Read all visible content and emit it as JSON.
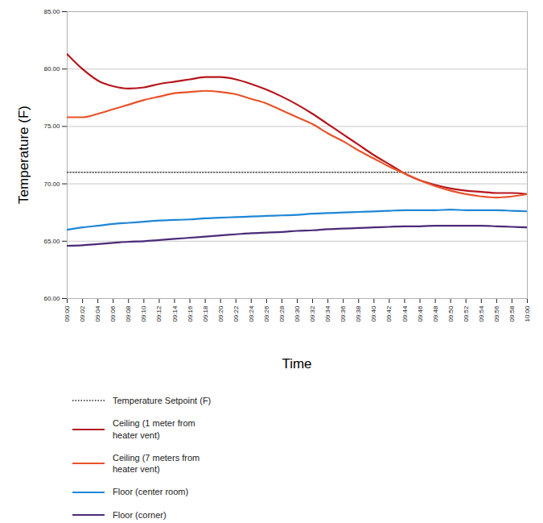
{
  "chart_data": {
    "type": "line",
    "xlabel": "Time",
    "ylabel": "Temperature (F)",
    "x": [
      "09:00",
      "09:02",
      "09:04",
      "09:06",
      "09:08",
      "09:10",
      "09:12",
      "09:14",
      "09:16",
      "09:18",
      "09:20",
      "09:22",
      "09:24",
      "09:26",
      "09:28",
      "09:30",
      "09:32",
      "09:34",
      "09:36",
      "09:38",
      "09:40",
      "09:42",
      "09:44",
      "09:46",
      "09:48",
      "09:50",
      "09:52",
      "09:54",
      "09:56",
      "09:58",
      "10:00"
    ],
    "xlim": [
      "09:00",
      "10:00"
    ],
    "xticks": [
      "09:00",
      "09:02",
      "09:04",
      "09:06",
      "09:08",
      "09:10",
      "09:12",
      "09:14",
      "09:16",
      "09:18",
      "09:20",
      "09:22",
      "09:24",
      "09:26",
      "09:28",
      "09:30",
      "09:32",
      "09:34",
      "09:36",
      "09:38",
      "09:40",
      "09:42",
      "09:44",
      "09:46",
      "09:48",
      "09:50",
      "09:52",
      "09:54",
      "09:56",
      "09:58",
      "10:00"
    ],
    "ylim": [
      60,
      85
    ],
    "yticks": [
      {
        "value": 60,
        "label": "60.00"
      },
      {
        "value": 65,
        "label": "65.00"
      },
      {
        "value": 70,
        "label": "70.00"
      },
      {
        "value": 75,
        "label": "75.00"
      },
      {
        "value": 80,
        "label": "80.00"
      },
      {
        "value": 85,
        "label": "85.00"
      }
    ],
    "grid": true,
    "legend": "bottom",
    "series": [
      {
        "name": "Temperature Setpoint (F)",
        "color": "#222222",
        "line_style": "dotted",
        "values": [
          71,
          71,
          71,
          71,
          71,
          71,
          71,
          71,
          71,
          71,
          71,
          71,
          71,
          71,
          71,
          71,
          71,
          71,
          71,
          71,
          71,
          71,
          71,
          71,
          71,
          71,
          71,
          71,
          71,
          71,
          71
        ]
      },
      {
        "name": "Ceiling (1 meter from heater vent)",
        "color": "#b5161d",
        "line_style": "solid",
        "values": [
          81.3,
          80.0,
          79.0,
          78.5,
          78.3,
          78.4,
          78.7,
          78.9,
          79.1,
          79.3,
          79.3,
          79.1,
          78.7,
          78.2,
          77.6,
          76.9,
          76.1,
          75.2,
          74.3,
          73.4,
          72.5,
          71.7,
          70.9,
          70.3,
          69.9,
          69.6,
          69.4,
          69.3,
          69.2,
          69.2,
          69.1
        ]
      },
      {
        "name": "Ceiling (7 meters from heater vent)",
        "color": "#e8532a",
        "line_style": "solid",
        "values": [
          75.8,
          75.8,
          76.1,
          76.5,
          76.9,
          77.3,
          77.6,
          77.9,
          78.0,
          78.1,
          78.0,
          77.8,
          77.4,
          77.0,
          76.4,
          75.8,
          75.2,
          74.4,
          73.7,
          72.9,
          72.2,
          71.5,
          70.9,
          70.3,
          69.8,
          69.4,
          69.1,
          68.9,
          68.8,
          68.9,
          69.1
        ]
      },
      {
        "name": "Floor (center room)",
        "color": "#1f87d6",
        "line_style": "solid",
        "values": [
          66.0,
          66.2,
          66.35,
          66.5,
          66.6,
          66.7,
          66.8,
          66.85,
          66.9,
          67.0,
          67.05,
          67.1,
          67.15,
          67.2,
          67.25,
          67.3,
          67.4,
          67.45,
          67.5,
          67.55,
          67.6,
          67.65,
          67.7,
          67.7,
          67.7,
          67.75,
          67.7,
          67.7,
          67.7,
          67.65,
          67.6
        ]
      },
      {
        "name": "Floor (corner)",
        "color": "#4b2a78",
        "line_style": "solid",
        "values": [
          64.6,
          64.65,
          64.75,
          64.85,
          64.95,
          65.0,
          65.1,
          65.2,
          65.3,
          65.4,
          65.5,
          65.6,
          65.7,
          65.75,
          65.8,
          65.9,
          65.95,
          66.05,
          66.1,
          66.15,
          66.2,
          66.25,
          66.3,
          66.3,
          66.35,
          66.35,
          66.35,
          66.35,
          66.3,
          66.25,
          66.2
        ]
      }
    ]
  }
}
